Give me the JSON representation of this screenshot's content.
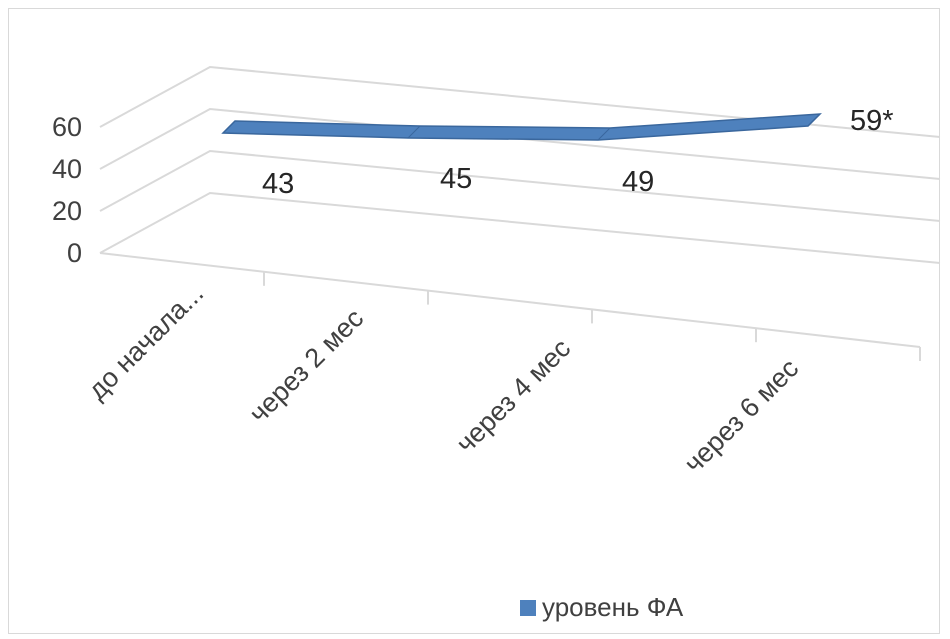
{
  "chart_data": {
    "type": "line",
    "style": "3d",
    "categories": [
      "до начала...",
      "через 2 мес",
      "через 4 мес",
      "через 6 мес"
    ],
    "series": [
      {
        "name": "уровень ФА",
        "values": [
          43,
          45,
          49,
          59
        ],
        "color": "#4e81bd"
      }
    ],
    "data_labels": [
      "43",
      "45",
      "49",
      "59*"
    ],
    "y_ticks": [
      0,
      20,
      40,
      60
    ],
    "ylim": [
      0,
      60
    ],
    "grid": true,
    "legend_position": "bottom"
  },
  "colors": {
    "series_fill": "#4e81bd",
    "series_edge": "#3a679d",
    "grid": "#d9d9d9",
    "text": "#404040"
  }
}
